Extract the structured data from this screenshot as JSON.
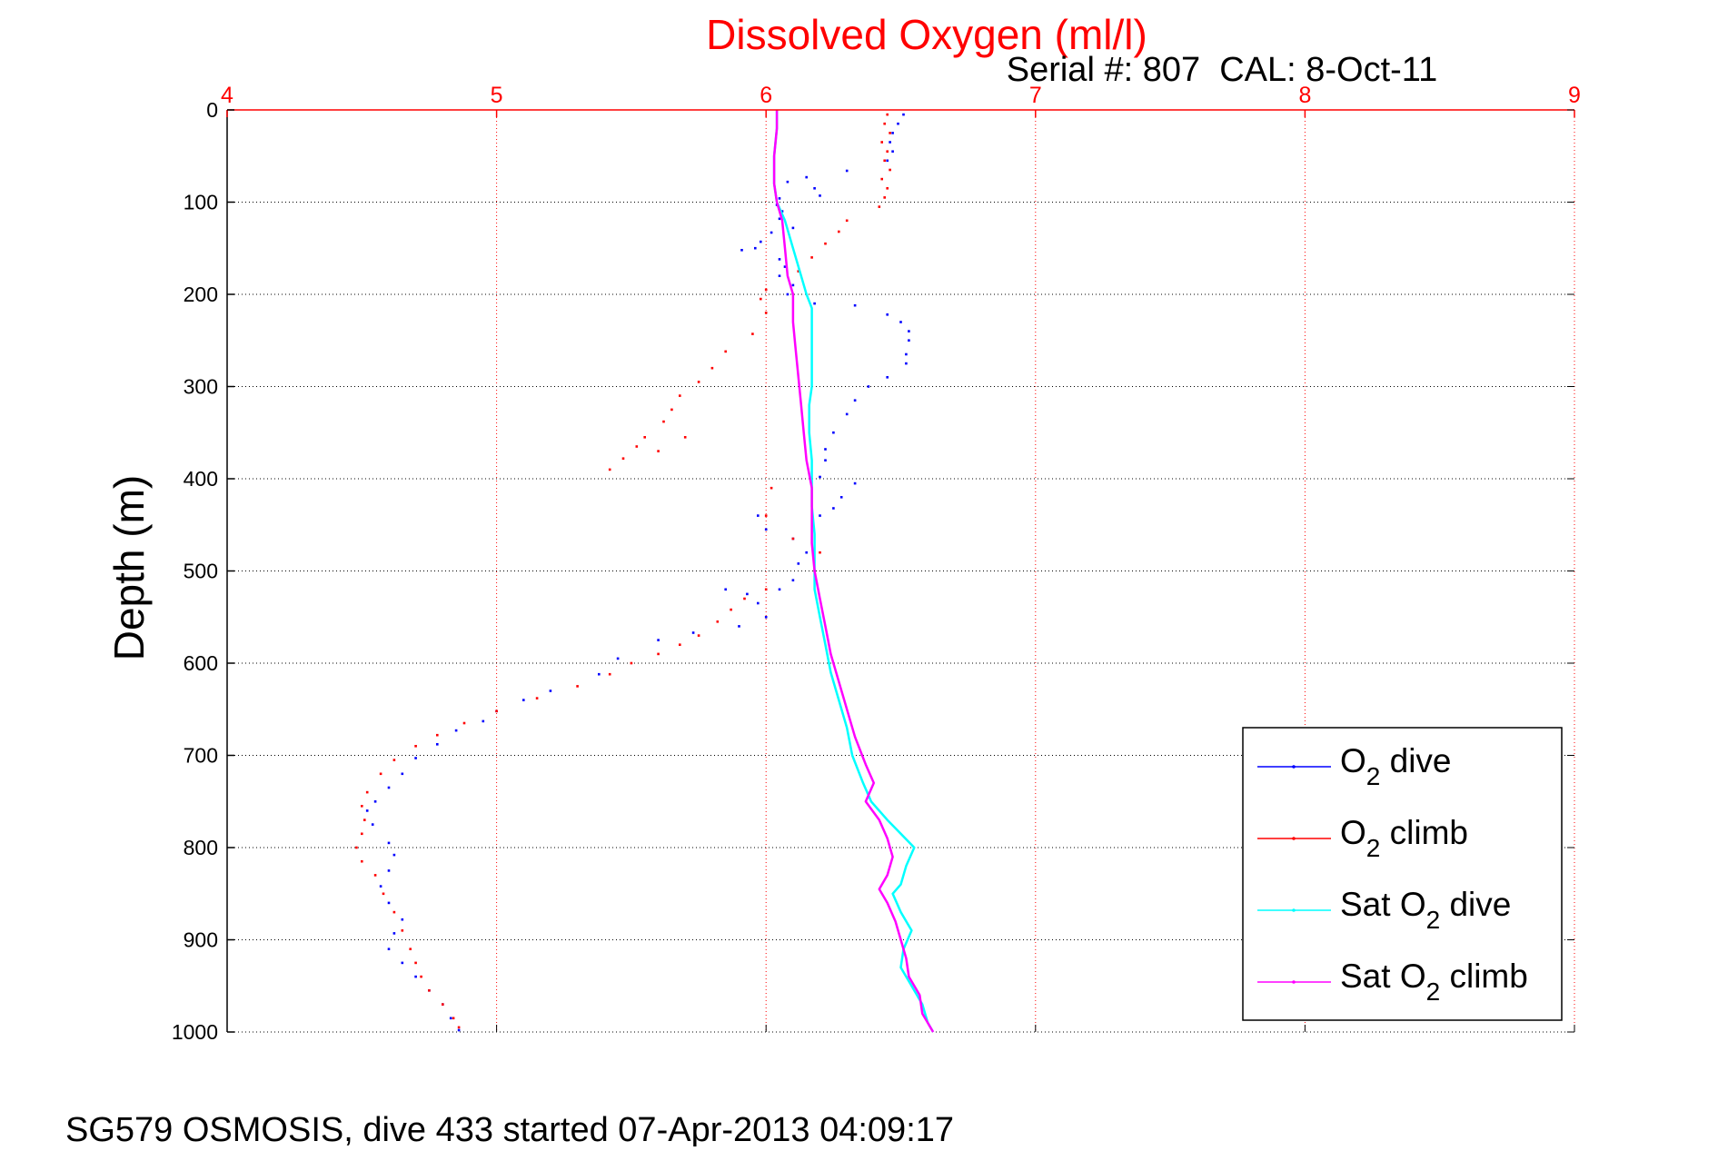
{
  "chart_data": {
    "type": "scatter",
    "title": "Dissolved Oxygen (ml/l)",
    "subtitle": "Serial #: 807  CAL: 8-Oct-11",
    "footer": "SG579 OSMOSIS, dive 433 started 07-Apr-2013 04:09:17",
    "xlabel": "",
    "ylabel": "Depth (m)",
    "xlim": [
      4,
      9
    ],
    "ylim": [
      0,
      1000
    ],
    "y_reversed": true,
    "x_axis_position": "top",
    "x_ticks": [
      "4",
      "5",
      "6",
      "7",
      "8",
      "9"
    ],
    "y_ticks": [
      "0",
      "100",
      "200",
      "300",
      "400",
      "500",
      "600",
      "700",
      "800",
      "900",
      "1000"
    ],
    "grid": true,
    "legend_position": "bottom-right",
    "colors": {
      "title": "#ff0000",
      "x_axis": "#ff0000",
      "grid_x": "#ff0000",
      "grid_y": "#000000",
      "o2_dive": "#0000ff",
      "o2_climb": "#ff0000",
      "sat_dive": "#00ffff",
      "sat_climb": "#ff00ff"
    },
    "series": [
      {
        "name": "O2 dive",
        "legend_main": "O",
        "legend_sub": "2",
        "legend_rest": " dive",
        "color": "#0000ff",
        "style": "dots",
        "points": [
          [
            6.51,
            5
          ],
          [
            6.49,
            15
          ],
          [
            6.47,
            25
          ],
          [
            6.46,
            35
          ],
          [
            6.47,
            45
          ],
          [
            6.45,
            55
          ],
          [
            6.3,
            66
          ],
          [
            6.15,
            73
          ],
          [
            6.08,
            78
          ],
          [
            6.18,
            85
          ],
          [
            6.2,
            93
          ],
          [
            6.05,
            96
          ],
          [
            6.04,
            103
          ],
          [
            6.06,
            110
          ],
          [
            6.05,
            118
          ],
          [
            6.1,
            128
          ],
          [
            6.02,
            133
          ],
          [
            5.98,
            143
          ],
          [
            5.96,
            150
          ],
          [
            5.91,
            152
          ],
          [
            6.05,
            162
          ],
          [
            6.07,
            170
          ],
          [
            6.05,
            180
          ],
          [
            6.1,
            190
          ],
          [
            6.08,
            200
          ],
          [
            6.18,
            210
          ],
          [
            6.33,
            212
          ],
          [
            6.45,
            222
          ],
          [
            6.5,
            230
          ],
          [
            6.53,
            240
          ],
          [
            6.53,
            250
          ],
          [
            6.52,
            265
          ],
          [
            6.52,
            275
          ],
          [
            6.45,
            290
          ],
          [
            6.38,
            300
          ],
          [
            6.33,
            315
          ],
          [
            6.3,
            330
          ],
          [
            6.25,
            350
          ],
          [
            6.22,
            368
          ],
          [
            6.22,
            380
          ],
          [
            6.2,
            398
          ],
          [
            6.33,
            405
          ],
          [
            6.28,
            420
          ],
          [
            6.25,
            432
          ],
          [
            6.2,
            440
          ],
          [
            5.97,
            440
          ],
          [
            6.0,
            455
          ],
          [
            6.1,
            465
          ],
          [
            6.15,
            480
          ],
          [
            6.12,
            492
          ],
          [
            6.1,
            510
          ],
          [
            6.05,
            520
          ],
          [
            5.93,
            525
          ],
          [
            5.85,
            520
          ],
          [
            5.97,
            535
          ],
          [
            6.0,
            550
          ],
          [
            5.9,
            560
          ],
          [
            5.73,
            567
          ],
          [
            5.6,
            575
          ],
          [
            5.45,
            595
          ],
          [
            5.38,
            612
          ],
          [
            5.2,
            630
          ],
          [
            5.1,
            640
          ],
          [
            5.0,
            652
          ],
          [
            4.95,
            663
          ],
          [
            4.85,
            673
          ],
          [
            4.78,
            688
          ],
          [
            4.7,
            703
          ],
          [
            4.65,
            720
          ],
          [
            4.6,
            735
          ],
          [
            4.55,
            750
          ],
          [
            4.52,
            760
          ],
          [
            4.54,
            775
          ],
          [
            4.6,
            795
          ],
          [
            4.62,
            808
          ],
          [
            4.6,
            825
          ],
          [
            4.57,
            842
          ],
          [
            4.6,
            860
          ],
          [
            4.65,
            878
          ],
          [
            4.62,
            893
          ],
          [
            4.6,
            910
          ],
          [
            4.65,
            925
          ],
          [
            4.7,
            940
          ],
          [
            4.75,
            955
          ],
          [
            4.8,
            970
          ],
          [
            4.83,
            985
          ],
          [
            4.86,
            998
          ]
        ]
      },
      {
        "name": "O2 climb",
        "legend_main": "O",
        "legend_sub": "2",
        "legend_rest": " climb",
        "color": "#ff0000",
        "style": "dots",
        "points": [
          [
            6.45,
            5
          ],
          [
            6.44,
            15
          ],
          [
            6.46,
            25
          ],
          [
            6.43,
            35
          ],
          [
            6.45,
            45
          ],
          [
            6.44,
            55
          ],
          [
            6.46,
            65
          ],
          [
            6.43,
            75
          ],
          [
            6.45,
            85
          ],
          [
            6.44,
            95
          ],
          [
            6.42,
            105
          ],
          [
            6.3,
            120
          ],
          [
            6.27,
            132
          ],
          [
            6.22,
            145
          ],
          [
            6.17,
            160
          ],
          [
            6.12,
            175
          ],
          [
            6.0,
            195
          ],
          [
            5.98,
            205
          ],
          [
            6.0,
            220
          ],
          [
            5.95,
            243
          ],
          [
            5.85,
            262
          ],
          [
            5.8,
            280
          ],
          [
            5.75,
            295
          ],
          [
            5.68,
            310
          ],
          [
            5.65,
            325
          ],
          [
            5.62,
            338
          ],
          [
            5.55,
            355
          ],
          [
            5.52,
            365
          ],
          [
            5.47,
            378
          ],
          [
            5.42,
            390
          ],
          [
            5.6,
            370
          ],
          [
            5.7,
            355
          ],
          [
            6.02,
            410
          ],
          [
            6.0,
            440
          ],
          [
            6.1,
            465
          ],
          [
            6.2,
            480
          ],
          [
            6.18,
            500
          ],
          [
            6.0,
            520
          ],
          [
            5.92,
            530
          ],
          [
            5.87,
            542
          ],
          [
            5.82,
            555
          ],
          [
            5.75,
            570
          ],
          [
            5.68,
            580
          ],
          [
            5.6,
            590
          ],
          [
            5.5,
            600
          ],
          [
            5.42,
            612
          ],
          [
            5.3,
            625
          ],
          [
            5.15,
            638
          ],
          [
            5.0,
            652
          ],
          [
            4.88,
            665
          ],
          [
            4.78,
            678
          ],
          [
            4.7,
            690
          ],
          [
            4.62,
            705
          ],
          [
            4.57,
            720
          ],
          [
            4.52,
            740
          ],
          [
            4.5,
            755
          ],
          [
            4.51,
            770
          ],
          [
            4.5,
            785
          ],
          [
            4.48,
            800
          ],
          [
            4.5,
            815
          ],
          [
            4.55,
            830
          ],
          [
            4.58,
            850
          ],
          [
            4.62,
            870
          ],
          [
            4.65,
            890
          ],
          [
            4.68,
            910
          ],
          [
            4.7,
            925
          ],
          [
            4.72,
            940
          ],
          [
            4.75,
            955
          ],
          [
            4.8,
            970
          ],
          [
            4.84,
            985
          ],
          [
            4.86,
            995
          ]
        ]
      },
      {
        "name": "Sat O2 dive",
        "legend_main": "Sat O",
        "legend_sub": "2",
        "legend_rest": " dive",
        "color": "#00ffff",
        "style": "line",
        "points": [
          [
            6.04,
            0
          ],
          [
            6.04,
            20
          ],
          [
            6.03,
            50
          ],
          [
            6.03,
            80
          ],
          [
            6.04,
            100
          ],
          [
            6.07,
            120
          ],
          [
            6.1,
            150
          ],
          [
            6.13,
            180
          ],
          [
            6.15,
            200
          ],
          [
            6.17,
            215
          ],
          [
            6.17,
            230
          ],
          [
            6.17,
            250
          ],
          [
            6.17,
            270
          ],
          [
            6.17,
            300
          ],
          [
            6.16,
            320
          ],
          [
            6.16,
            350
          ],
          [
            6.17,
            380
          ],
          [
            6.17,
            400
          ],
          [
            6.17,
            430
          ],
          [
            6.18,
            460
          ],
          [
            6.18,
            490
          ],
          [
            6.18,
            520
          ],
          [
            6.2,
            550
          ],
          [
            6.22,
            580
          ],
          [
            6.24,
            610
          ],
          [
            6.27,
            640
          ],
          [
            6.3,
            670
          ],
          [
            6.32,
            700
          ],
          [
            6.36,
            730
          ],
          [
            6.39,
            750
          ],
          [
            6.45,
            770
          ],
          [
            6.5,
            785
          ],
          [
            6.55,
            800
          ],
          [
            6.52,
            820
          ],
          [
            6.5,
            840
          ],
          [
            6.47,
            850
          ],
          [
            6.5,
            870
          ],
          [
            6.54,
            890
          ],
          [
            6.51,
            910
          ],
          [
            6.5,
            930
          ],
          [
            6.54,
            950
          ],
          [
            6.58,
            970
          ],
          [
            6.6,
            990
          ],
          [
            6.62,
            1000
          ]
        ]
      },
      {
        "name": "Sat O2 climb",
        "legend_main": "Sat O",
        "legend_sub": "2",
        "legend_rest": " climb",
        "color": "#ff00ff",
        "style": "line",
        "points": [
          [
            6.04,
            0
          ],
          [
            6.04,
            20
          ],
          [
            6.03,
            50
          ],
          [
            6.03,
            80
          ],
          [
            6.04,
            100
          ],
          [
            6.06,
            120
          ],
          [
            6.07,
            150
          ],
          [
            6.08,
            180
          ],
          [
            6.1,
            200
          ],
          [
            6.1,
            230
          ],
          [
            6.11,
            260
          ],
          [
            6.12,
            290
          ],
          [
            6.13,
            320
          ],
          [
            6.14,
            350
          ],
          [
            6.15,
            380
          ],
          [
            6.17,
            410
          ],
          [
            6.17,
            440
          ],
          [
            6.17,
            470
          ],
          [
            6.18,
            500
          ],
          [
            6.2,
            530
          ],
          [
            6.22,
            560
          ],
          [
            6.24,
            590
          ],
          [
            6.27,
            620
          ],
          [
            6.3,
            650
          ],
          [
            6.33,
            680
          ],
          [
            6.37,
            710
          ],
          [
            6.4,
            730
          ],
          [
            6.37,
            750
          ],
          [
            6.42,
            770
          ],
          [
            6.45,
            790
          ],
          [
            6.47,
            810
          ],
          [
            6.45,
            830
          ],
          [
            6.42,
            845
          ],
          [
            6.45,
            860
          ],
          [
            6.48,
            880
          ],
          [
            6.5,
            900
          ],
          [
            6.52,
            920
          ],
          [
            6.53,
            940
          ],
          [
            6.57,
            960
          ],
          [
            6.58,
            980
          ],
          [
            6.62,
            1000
          ]
        ]
      }
    ]
  }
}
